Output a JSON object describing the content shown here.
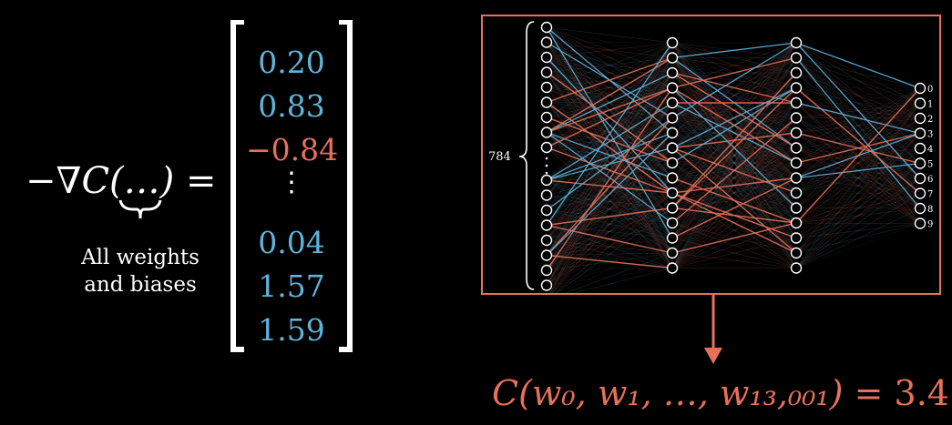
{
  "equation": {
    "lhs": "−∇C(…) =",
    "brace_caption": [
      "All weights",
      "and biases"
    ]
  },
  "gradient_vector": {
    "entries": [
      {
        "text": "0.20",
        "sign": "positive"
      },
      {
        "text": "0.83",
        "sign": "positive"
      },
      {
        "text": "−0.84",
        "sign": "negative"
      },
      {
        "text": "⋮",
        "sign": "ellipsis"
      },
      {
        "text": "0.04",
        "sign": "positive"
      },
      {
        "text": "1.57",
        "sign": "positive"
      },
      {
        "text": "1.59",
        "sign": "positive"
      }
    ]
  },
  "network": {
    "input_label": "784",
    "layers": [
      {
        "name": "input",
        "neurons": 784,
        "shown": 18
      },
      {
        "name": "hidden-1",
        "neurons": 16
      },
      {
        "name": "hidden-2",
        "neurons": 16
      },
      {
        "name": "output",
        "neurons": 10,
        "labels": [
          "0",
          "1",
          "2",
          "3",
          "4",
          "5",
          "6",
          "7",
          "8",
          "9"
        ]
      }
    ]
  },
  "cost": {
    "expression": "C(w₀, w₁, …, w₁₃,₀₀₁) =",
    "value": "3.4"
  },
  "colors": {
    "positive": "#5fb4dc",
    "negative": "#e8705a",
    "frame": "#e8705a",
    "arrow": "#e8705a",
    "text": "#ffffff"
  }
}
